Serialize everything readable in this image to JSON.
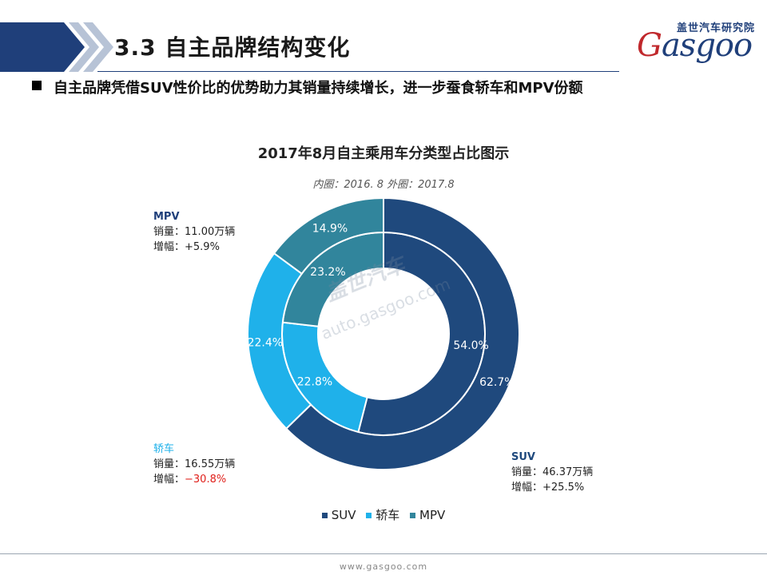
{
  "header": {
    "section_title": "3.3 自主品牌结构变化",
    "logo_cn": "盖世汽车研究院",
    "logo_en_initial": "G",
    "logo_en_rest": "asgoo"
  },
  "subtitle": "自主品牌凭借SUV性价比的优势助力其销量持续增长，进一步蚕食轿车和MPV份额",
  "chart_data": {
    "type": "donut",
    "title": "2017年8月自主乘用车分类型占比图示",
    "subtitle": "内圈：2016. 8   外圈：2017.8",
    "categories": [
      "SUV",
      "轿车",
      "MPV"
    ],
    "colors": [
      "#1f497d",
      "#1fb1ea",
      "#31859c"
    ],
    "series": [
      {
        "ring": "inner",
        "values": [
          54.0,
          22.8,
          23.2
        ],
        "labels": [
          "54.0%",
          "22.8%",
          "23.2%"
        ]
      },
      {
        "ring": "outer",
        "values": [
          62.7,
          22.4,
          14.9
        ],
        "labels": [
          "62.7%",
          "22.4%",
          "14.9%"
        ]
      }
    ],
    "annotations": [
      {
        "name": "SUV",
        "sales_label": "销量：",
        "sales": "46.37万辆",
        "growth_label": "增幅：",
        "growth": "+25.5%"
      },
      {
        "name": "轿车",
        "sales_label": "销量：",
        "sales": "16.55万辆",
        "growth_label": "增幅：",
        "growth": "−30.8%"
      },
      {
        "name": "MPV",
        "sales_label": "销量：",
        "sales": "11.00万辆",
        "growth_label": "增幅：",
        "growth": "+5.9%"
      }
    ],
    "legend": [
      "SUV",
      "轿车",
      "MPV"
    ],
    "watermark_cn": "盖世汽车",
    "watermark_url": "auto.gasgoo.com"
  },
  "footer": {
    "url": "www.gasgoo.com"
  }
}
